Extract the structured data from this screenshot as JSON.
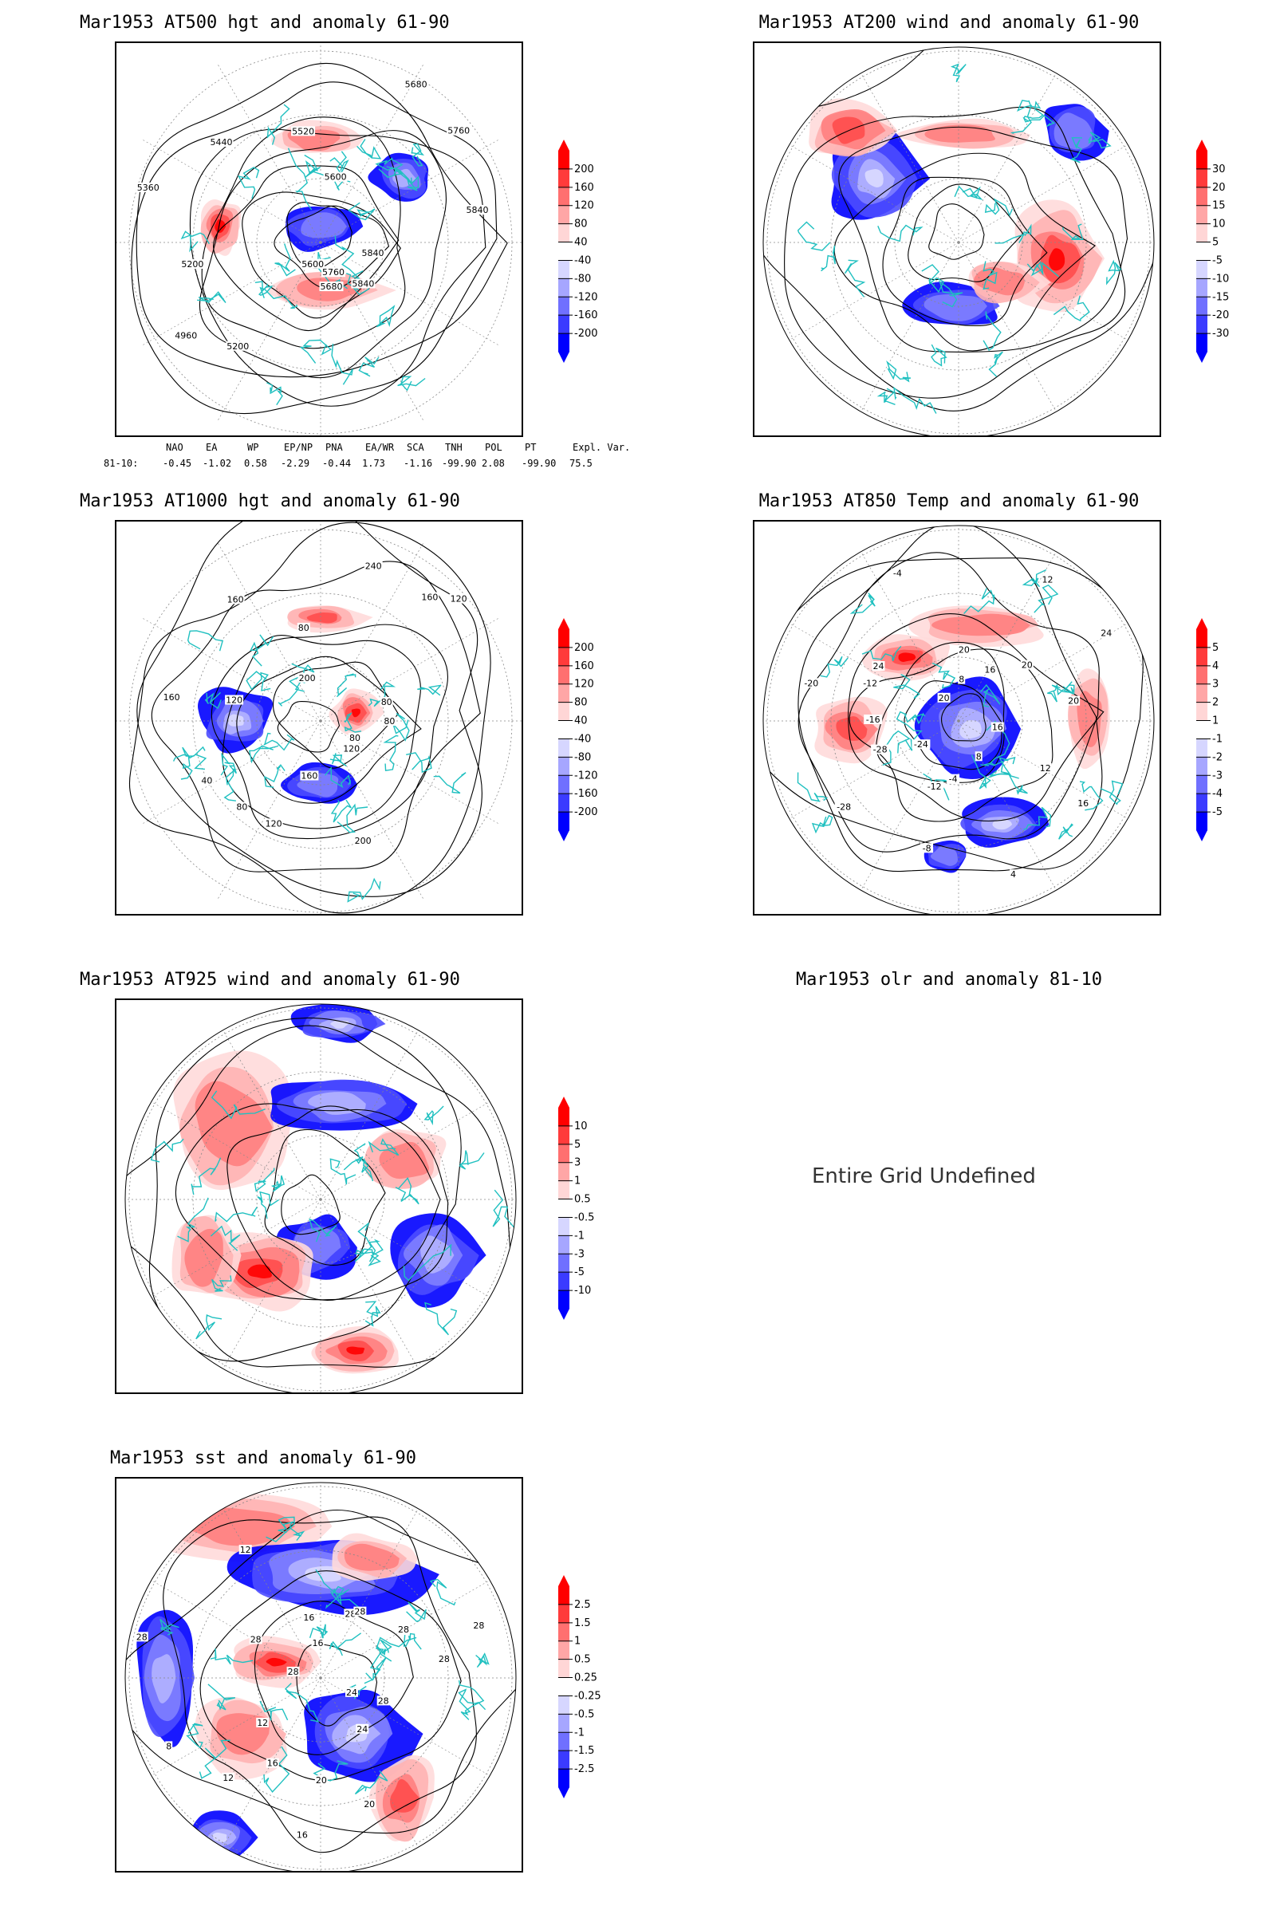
{
  "panels": [
    {
      "title": "Mar1953 AT500 hgt and anomaly 61-90",
      "contour_labels": [
        "5840",
        "5840",
        "5760",
        "5680",
        "5600",
        "5200",
        "4960",
        "5200",
        "5360",
        "5440",
        "5520",
        "5600",
        "5680",
        "5760",
        "5840"
      ],
      "colorbar_ticks": [
        "200",
        "160",
        "120",
        "80",
        "40",
        "-40",
        "-80",
        "-120",
        "-160",
        "-200"
      ]
    },
    {
      "title": "Mar1953 AT200 wind and anomaly 61-90",
      "colorbar_ticks": [
        "30",
        "20",
        "15",
        "10",
        "5",
        "-5",
        "-10",
        "-15",
        "-20",
        "-30"
      ]
    },
    {
      "title": "Mar1953 AT1000 hgt and anomaly 61-90",
      "contour_labels": [
        "80",
        "80",
        "120",
        "200",
        "160",
        "120",
        "80",
        "40",
        "160",
        "120",
        "160",
        "200",
        "80",
        "240",
        "160",
        "120",
        "80"
      ],
      "colorbar_ticks": [
        "200",
        "160",
        "120",
        "80",
        "40",
        "-40",
        "-80",
        "-120",
        "-160",
        "-200"
      ]
    },
    {
      "title": "Mar1953 AT850 Temp and anomaly 61-90",
      "contour_labels": [
        "16",
        "16",
        "12",
        "8",
        "4",
        "-4",
        "-8",
        "-12",
        "-28",
        "-24",
        "-28",
        "-16",
        "-20",
        "-12",
        "24",
        "20",
        "-4",
        "20",
        "8",
        "12",
        "16",
        "20",
        "24",
        "20"
      ],
      "colorbar_ticks": [
        "5",
        "4",
        "3",
        "2",
        "1",
        "-1",
        "-2",
        "-3",
        "-4",
        "-5"
      ]
    },
    {
      "title": "Mar1953 AT925 wind and anomaly 61-90",
      "colorbar_ticks": [
        "10",
        "5",
        "3",
        "1",
        "0.5",
        "-0.5",
        "-1",
        "-3",
        "-5",
        "-10"
      ]
    },
    {
      "title": "Mar1953 olr and anomaly 81-10",
      "message": "Entire Grid Undefined"
    },
    {
      "title": "Mar1953 sst and anomaly 61-90",
      "contour_labels": [
        "28",
        "24",
        "24",
        "20",
        "20",
        "16",
        "16",
        "12",
        "12",
        "8",
        "28",
        "28",
        "28",
        "12",
        "16",
        "16",
        "28",
        "28",
        "28",
        "28",
        "28"
      ],
      "colorbar_ticks": [
        "2.5",
        "1.5",
        "1",
        "0.5",
        "0.25",
        "-0.25",
        "-0.5",
        "-1",
        "-1.5",
        "-2.5"
      ]
    }
  ],
  "teleconnections": {
    "headers": [
      "NAO",
      "EA",
      "WP",
      "EP/NP",
      "PNA",
      "EA/WR",
      "SCA",
      "TNH",
      "POL",
      "PT",
      "Expl. Var."
    ],
    "row_label": "81-10:",
    "values": [
      "-0.45",
      "-1.02",
      "0.58",
      "-2.29",
      "-0.44",
      "1.73",
      "-1.16",
      "-99.90",
      "2.08",
      "-99.90",
      "75.5"
    ]
  },
  "colors": {
    "positive_scale": [
      "#ff0000",
      "#ff4d4d",
      "#ff8080",
      "#ffb3b3",
      "#ffdada"
    ],
    "negative_scale": [
      "#dadaff",
      "#b3b3ff",
      "#8080ff",
      "#4d4dff",
      "#0000ff"
    ],
    "coastline": "#20c0c0",
    "contour": "#000000",
    "frame": "#000000"
  }
}
